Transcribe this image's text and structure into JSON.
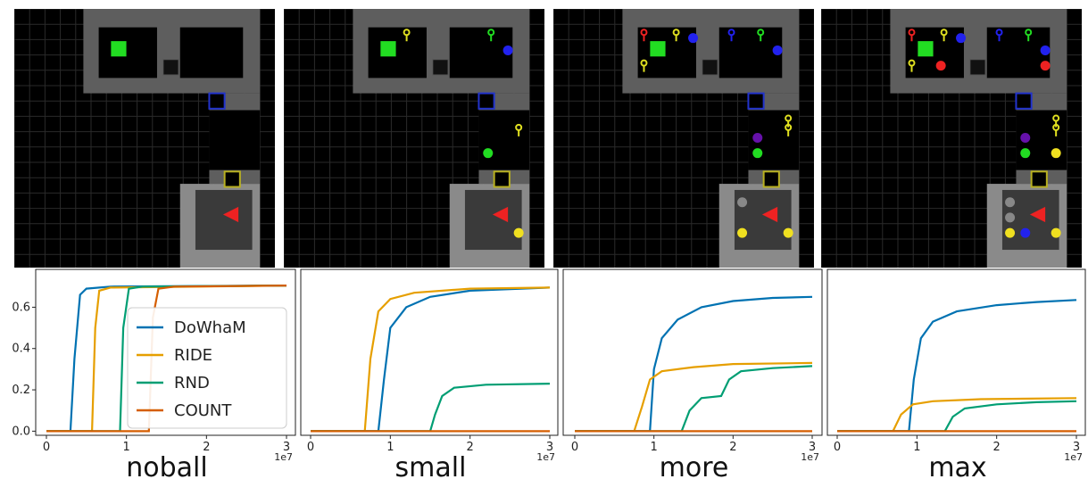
{
  "colors": {
    "DoWhaM": "#0072b2",
    "RIDE": "#e69f00",
    "RND": "#009e73",
    "COUNT": "#d55e00"
  },
  "panels": [
    {
      "id": "noball",
      "title": "noball",
      "keys": "none",
      "balls": "none"
    },
    {
      "id": "small",
      "title": "small",
      "keys": "few",
      "balls": "few"
    },
    {
      "id": "more",
      "title": "more",
      "keys": "more",
      "balls": "more"
    },
    {
      "id": "max",
      "title": "max",
      "keys": "max",
      "balls": "max"
    }
  ],
  "chart_data": [
    {
      "type": "line",
      "title": "noball",
      "x_ticks": [
        "0",
        "1",
        "2",
        "3"
      ],
      "x_multiplier": "1e7",
      "xlim": [
        0,
        30000000
      ],
      "y_ticks": [
        "0.0",
        "0.2",
        "0.4",
        "0.6"
      ],
      "ylim": [
        -0.02,
        0.74
      ],
      "legend": {
        "entries": [
          "DoWhaM",
          "RIDE",
          "RND",
          "COUNT"
        ],
        "placement": "center"
      },
      "series": [
        {
          "name": "DoWhaM",
          "x": [
            0,
            3000000,
            3500000,
            4200000,
            5000000,
            8000000,
            30000000
          ],
          "y": [
            0.0,
            0.0,
            0.35,
            0.66,
            0.69,
            0.7,
            0.705
          ]
        },
        {
          "name": "RIDE",
          "x": [
            0,
            5700000,
            6100000,
            6600000,
            8000000,
            30000000
          ],
          "y": [
            0.0,
            0.0,
            0.5,
            0.68,
            0.695,
            0.705
          ]
        },
        {
          "name": "RND",
          "x": [
            0,
            9200000,
            9600000,
            10300000,
            12000000,
            30000000
          ],
          "y": [
            0.0,
            0.0,
            0.5,
            0.69,
            0.7,
            0.705
          ]
        },
        {
          "name": "COUNT",
          "x": [
            0,
            12800000,
            13300000,
            14000000,
            16000000,
            30000000
          ],
          "y": [
            0.0,
            0.0,
            0.55,
            0.69,
            0.7,
            0.705
          ]
        }
      ]
    },
    {
      "type": "line",
      "title": "small",
      "x_ticks": [
        "0",
        "1",
        "2",
        "3"
      ],
      "x_multiplier": "1e7",
      "xlim": [
        0,
        30000000
      ],
      "series": [
        {
          "name": "DoWhaM",
          "x": [
            0,
            8500000,
            9200000,
            10000000,
            12000000,
            15000000,
            20000000,
            30000000
          ],
          "y": [
            0.0,
            0.0,
            0.25,
            0.5,
            0.6,
            0.65,
            0.68,
            0.695
          ]
        },
        {
          "name": "RIDE",
          "x": [
            0,
            6800000,
            7500000,
            8500000,
            10000000,
            13000000,
            20000000,
            30000000
          ],
          "y": [
            0.0,
            0.0,
            0.35,
            0.58,
            0.64,
            0.67,
            0.69,
            0.695
          ]
        },
        {
          "name": "RND",
          "x": [
            0,
            15000000,
            15600000,
            16500000,
            18000000,
            22000000,
            30000000
          ],
          "y": [
            0.0,
            0.0,
            0.08,
            0.17,
            0.21,
            0.225,
            0.23
          ]
        },
        {
          "name": "COUNT",
          "x": [
            0,
            30000000
          ],
          "y": [
            0.0,
            0.0
          ]
        }
      ]
    },
    {
      "type": "line",
      "title": "more",
      "x_ticks": [
        "0",
        "1",
        "2",
        "3"
      ],
      "x_multiplier": "1e7",
      "xlim": [
        0,
        30000000
      ],
      "series": [
        {
          "name": "DoWhaM",
          "x": [
            0,
            9500000,
            10000000,
            11000000,
            13000000,
            16000000,
            20000000,
            25000000,
            30000000
          ],
          "y": [
            0.0,
            0.0,
            0.3,
            0.45,
            0.54,
            0.6,
            0.63,
            0.645,
            0.65
          ]
        },
        {
          "name": "RIDE",
          "x": [
            0,
            7500000,
            8500000,
            9500000,
            11000000,
            15000000,
            20000000,
            30000000
          ],
          "y": [
            0.0,
            0.0,
            0.12,
            0.25,
            0.29,
            0.31,
            0.325,
            0.33
          ]
        },
        {
          "name": "RND",
          "x": [
            0,
            13500000,
            14500000,
            16000000,
            18500000,
            19500000,
            21000000,
            25000000,
            30000000
          ],
          "y": [
            0.0,
            0.0,
            0.1,
            0.16,
            0.17,
            0.25,
            0.29,
            0.305,
            0.315
          ]
        },
        {
          "name": "COUNT",
          "x": [
            0,
            30000000
          ],
          "y": [
            0.0,
            0.0
          ]
        }
      ]
    },
    {
      "type": "line",
      "title": "max",
      "x_ticks": [
        "0",
        "1",
        "2",
        "3"
      ],
      "x_multiplier": "1e7",
      "xlim": [
        0,
        30000000
      ],
      "series": [
        {
          "name": "DoWhaM",
          "x": [
            0,
            9000000,
            9600000,
            10500000,
            12000000,
            15000000,
            20000000,
            25000000,
            30000000
          ],
          "y": [
            0.0,
            0.0,
            0.25,
            0.45,
            0.53,
            0.58,
            0.61,
            0.625,
            0.635
          ]
        },
        {
          "name": "RIDE",
          "x": [
            0,
            7000000,
            8000000,
            9500000,
            12000000,
            18000000,
            30000000
          ],
          "y": [
            0.0,
            0.0,
            0.08,
            0.13,
            0.145,
            0.155,
            0.16
          ]
        },
        {
          "name": "RND",
          "x": [
            0,
            13500000,
            14500000,
            16000000,
            20000000,
            25000000,
            30000000
          ],
          "y": [
            0.0,
            0.0,
            0.07,
            0.11,
            0.13,
            0.14,
            0.145
          ]
        },
        {
          "name": "COUNT",
          "x": [
            0,
            30000000
          ],
          "y": [
            0.0,
            0.0
          ]
        }
      ]
    }
  ]
}
